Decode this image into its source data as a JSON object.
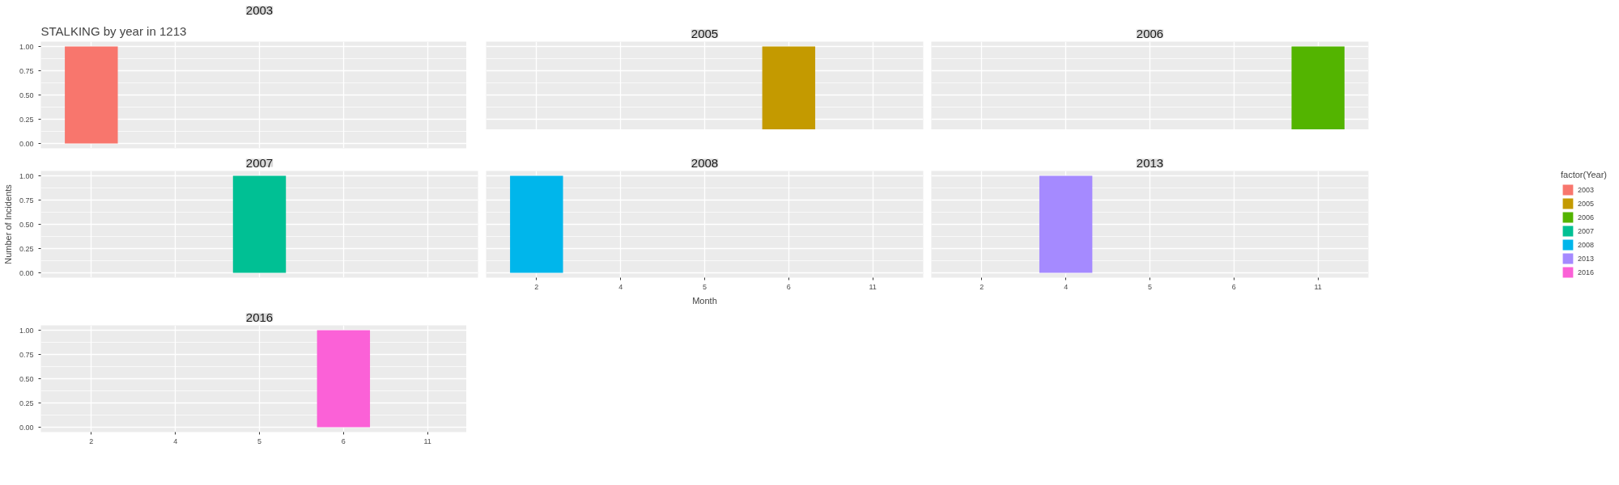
{
  "chart_data": [
    {
      "type": "bar",
      "title": "STALKING by year in 1213",
      "categories": [
        "2",
        "4",
        "5",
        "6",
        "11"
      ],
      "series": [
        {
          "name": "2003",
          "color": "#f8766d",
          "values": [
            1,
            null,
            null,
            null,
            null
          ]
        }
      ],
      "ylim": [
        -0.05,
        1.05
      ],
      "yticks": [
        {
          "value": 0,
          "label": "0.00"
        },
        {
          "value": 0.25,
          "label": "0.25"
        },
        {
          "value": 0.5,
          "label": "0.50"
        },
        {
          "value": 0.75,
          "label": "0.75"
        },
        {
          "value": 1,
          "label": "1.00"
        }
      ],
      "grid": true,
      "tick_labels": "y"
    },
    {
      "type": "bar",
      "categories": [
        "2",
        "4",
        "5",
        "6",
        "11"
      ],
      "series": [
        {
          "name": "2005",
          "color": "#c49a00",
          "values": [
            null,
            null,
            null,
            1,
            null
          ]
        }
      ],
      "ylim": [
        -0.05,
        1.05
      ],
      "yticks": [
        {
          "value": 0,
          "label": null
        },
        {
          "value": 0.25,
          "label": null
        },
        {
          "value": 0.5,
          "label": null
        },
        {
          "value": 0.75,
          "label": null
        },
        {
          "value": 1,
          "label": null
        }
      ],
      "grid": true,
      "tick_labels": false
    },
    {
      "type": "bar",
      "categories": [
        "2",
        "4",
        "5",
        "6",
        "11"
      ],
      "series": [
        {
          "name": "2006",
          "color": "#53b400",
          "values": [
            null,
            null,
            null,
            null,
            1
          ]
        }
      ],
      "ylim": [
        -0.05,
        1.05
      ],
      "yticks": [
        {
          "value": 0,
          "label": null
        },
        {
          "value": 0.25,
          "label": null
        },
        {
          "value": 0.5,
          "label": null
        },
        {
          "value": 0.75,
          "label": null
        },
        {
          "value": 1,
          "label": null
        }
      ],
      "grid": true,
      "tick_labels": false
    },
    {
      "type": "bar",
      "ylabel": "Number of Incidents",
      "categories": [
        "2",
        "4",
        "5",
        "6",
        "11"
      ],
      "series": [
        {
          "name": "2007",
          "color": "#00c094",
          "values": [
            null,
            null,
            1,
            null,
            null
          ]
        }
      ],
      "ylim": [
        -0.05,
        1.05
      ],
      "yticks": [
        {
          "value": 0,
          "label": "0.00"
        },
        {
          "value": 0.25,
          "label": "0.25"
        },
        {
          "value": 0.5,
          "label": "0.50"
        },
        {
          "value": 0.75,
          "label": "0.75"
        },
        {
          "value": 1,
          "label": "1.00"
        }
      ],
      "grid": true,
      "tick_labels": "y"
    },
    {
      "type": "bar",
      "xlabel": "Month",
      "categories": [
        "2",
        "4",
        "5",
        "6",
        "11"
      ],
      "series": [
        {
          "name": "2008",
          "color": "#00b6eb",
          "values": [
            1,
            null,
            null,
            null,
            null
          ]
        }
      ],
      "ylim": [
        -0.05,
        1.05
      ],
      "yticks": [
        {
          "value": 0,
          "label": null
        },
        {
          "value": 0.25,
          "label": null
        },
        {
          "value": 0.5,
          "label": null
        },
        {
          "value": 0.75,
          "label": null
        },
        {
          "value": 1,
          "label": null
        }
      ],
      "grid": true,
      "tick_labels": "x"
    },
    {
      "type": "bar",
      "legend_title": "factor(Year)",
      "legend": "right",
      "categories": [
        "2",
        "4",
        "5",
        "6",
        "11"
      ],
      "series": [
        {
          "name": "2013",
          "color": "#a58aff",
          "values": [
            null,
            1,
            null,
            null,
            null
          ]
        }
      ],
      "ylim": [
        -0.05,
        1.05
      ],
      "yticks": [
        {
          "value": 0,
          "label": null
        },
        {
          "value": 0.25,
          "label": null
        },
        {
          "value": 0.5,
          "label": null
        },
        {
          "value": 0.75,
          "label": null
        },
        {
          "value": 1,
          "label": null
        }
      ],
      "grid": true,
      "tick_labels": "x"
    },
    {
      "type": "bar",
      "categories": [
        "2",
        "4",
        "5",
        "6",
        "11"
      ],
      "series": [
        {
          "name": "2016",
          "color": "#fb61d7",
          "values": [
            null,
            null,
            null,
            1,
            null
          ]
        }
      ],
      "ylim": [
        -0.05,
        1.05
      ],
      "yticks": [
        {
          "value": 0,
          "label": "0.00"
        },
        {
          "value": 0.25,
          "label": "0.25"
        },
        {
          "value": 0.5,
          "label": "0.50"
        },
        {
          "value": 0.75,
          "label": "0.75"
        },
        {
          "value": 1,
          "label": "1.00"
        }
      ],
      "grid": true
    }
  ]
}
